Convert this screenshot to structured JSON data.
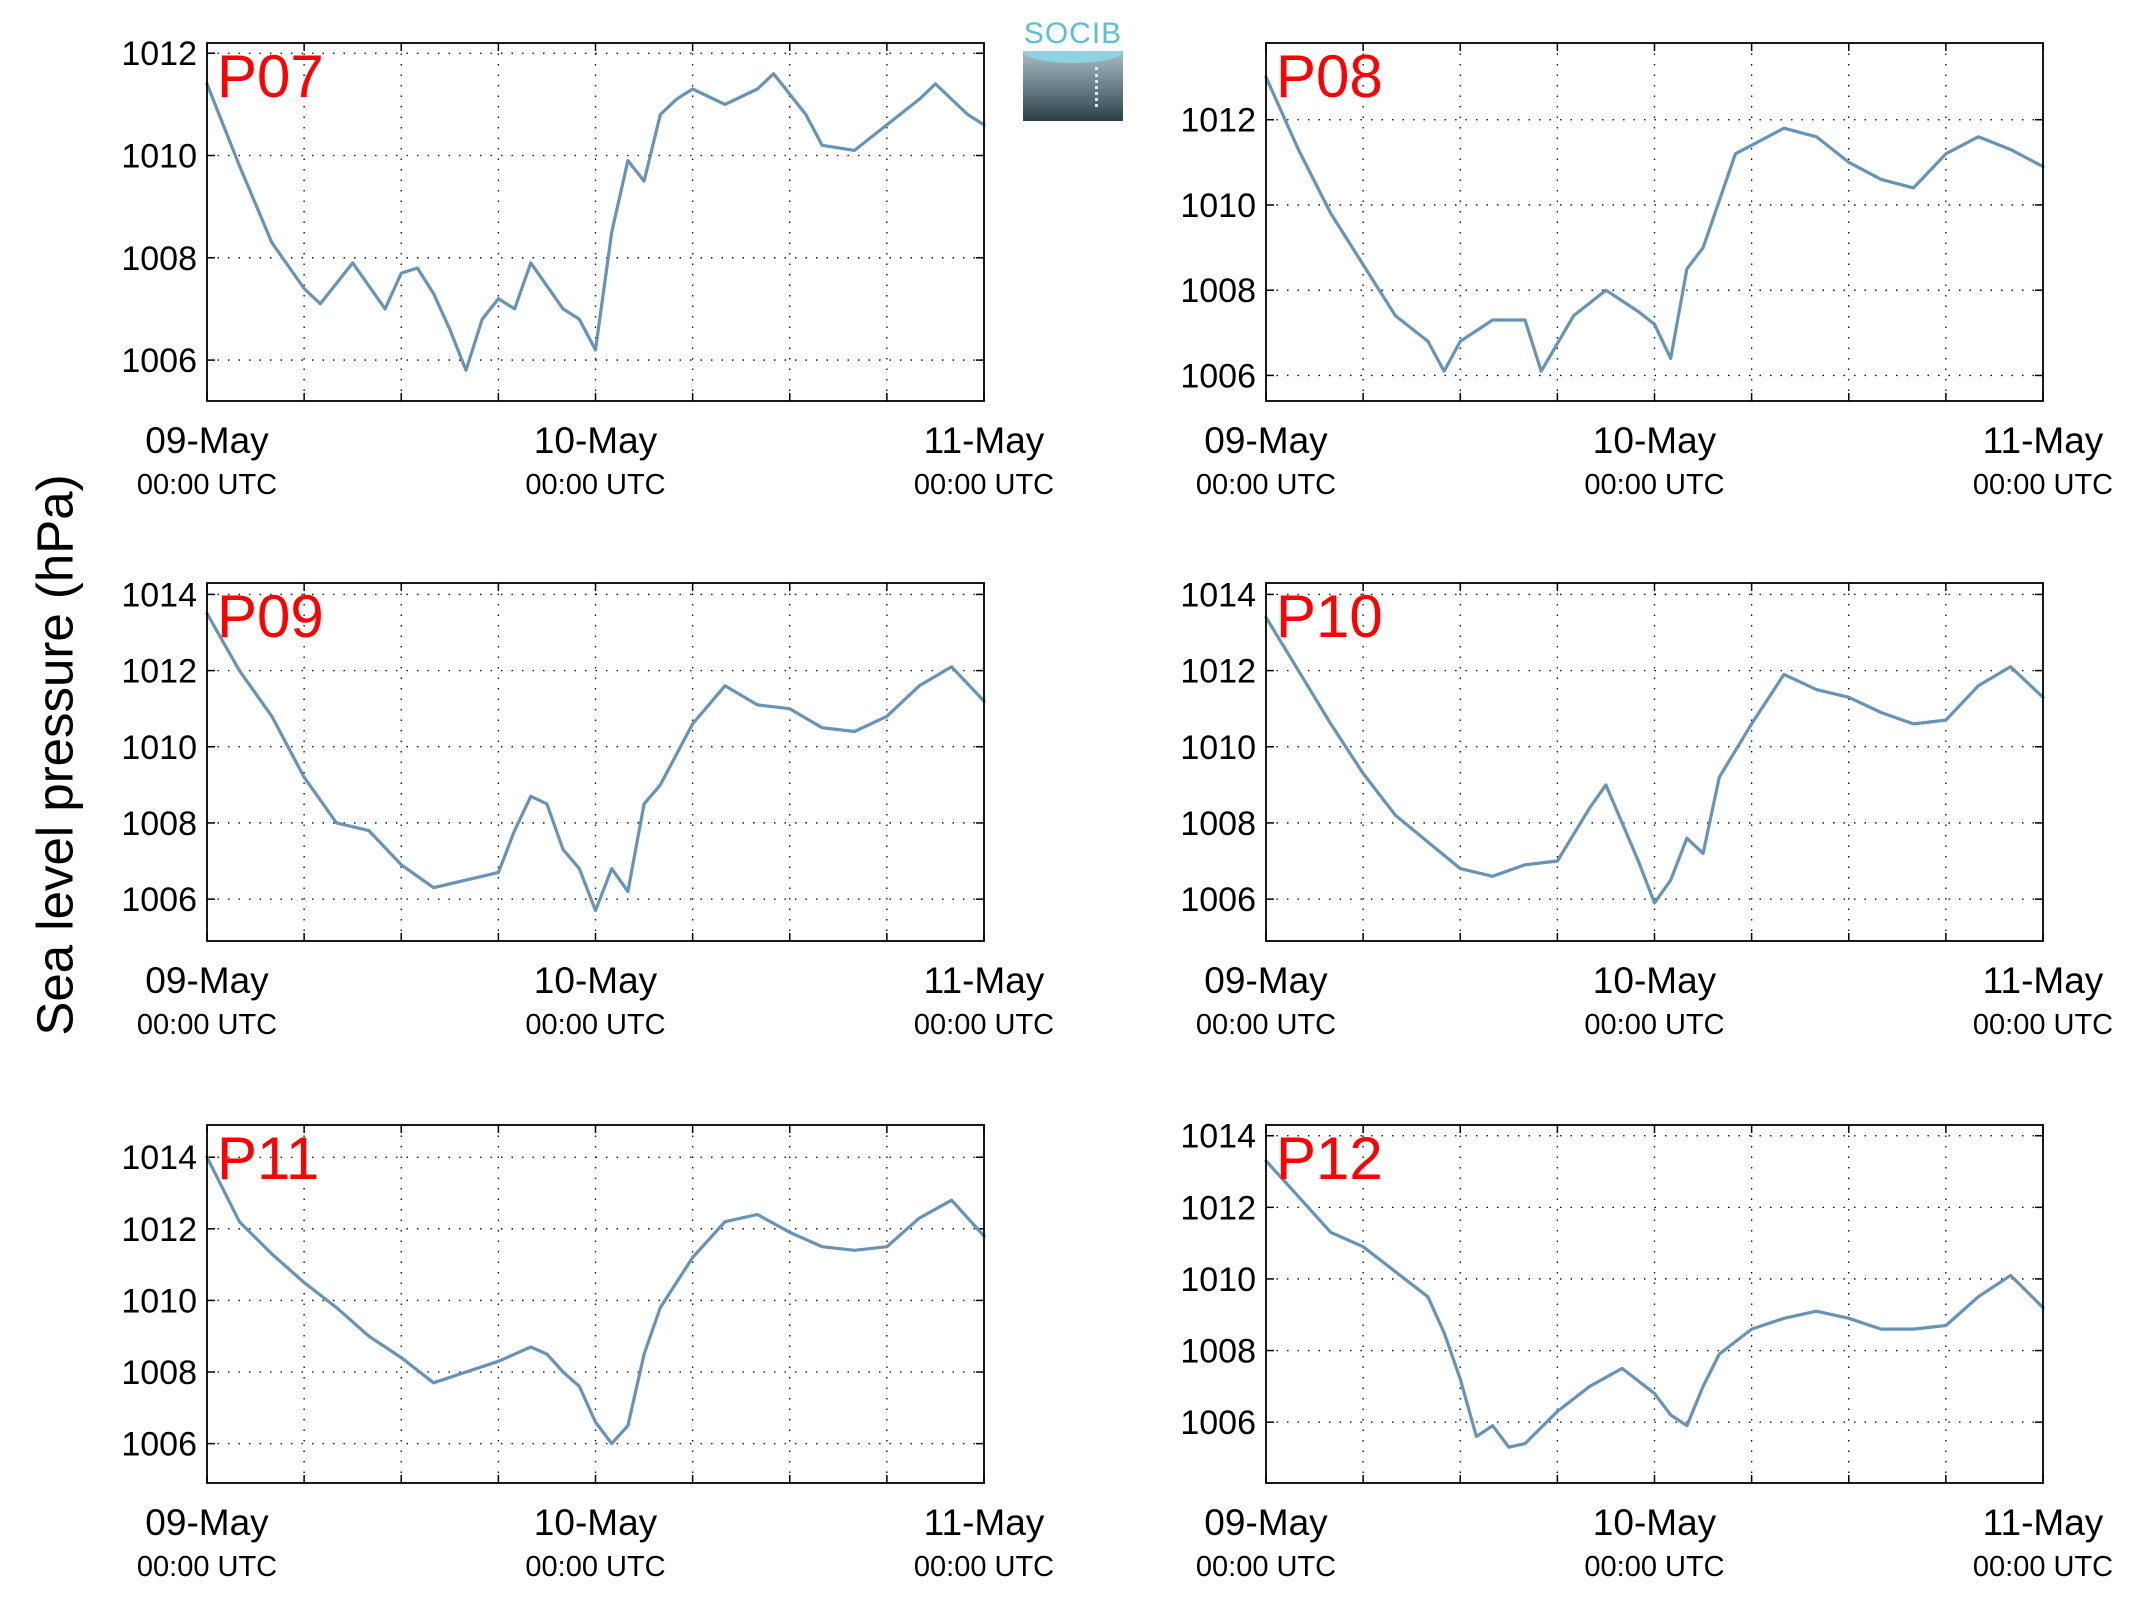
{
  "ylabel": "Sea level pressure (hPa)",
  "logo_text": "SOCIB",
  "line_color": "#6793b7",
  "label_color": "#ff0000",
  "chart_data": [
    {
      "type": "line",
      "label": "P07",
      "xticklabels": [
        {
          "date": "09-May",
          "time": "00:00 UTC"
        },
        {
          "date": "10-May",
          "time": "00:00 UTC"
        },
        {
          "date": "11-May",
          "time": "00:00 UTC"
        }
      ],
      "xlim": [
        "2013-05-09T00:00",
        "2013-05-11T00:00"
      ],
      "ylim": [
        1005.2,
        1012.2
      ],
      "yticks": [
        1006,
        1008,
        1010,
        1012
      ],
      "grid": true,
      "series": [
        {
          "x": [
            "2013-05-09T00:00",
            "2013-05-09T02:00",
            "2013-05-09T04:00",
            "2013-05-09T06:00",
            "2013-05-09T07:00",
            "2013-05-09T09:00",
            "2013-05-09T11:00",
            "2013-05-09T12:00",
            "2013-05-09T13:00",
            "2013-05-09T14:00",
            "2013-05-09T15:00",
            "2013-05-09T16:00",
            "2013-05-09T17:00",
            "2013-05-09T18:00",
            "2013-05-09T19:00",
            "2013-05-09T20:00",
            "2013-05-09T22:00",
            "2013-05-09T23:00",
            "2013-05-10T00:00",
            "2013-05-10T01:00",
            "2013-05-10T02:00",
            "2013-05-10T03:00",
            "2013-05-10T04:00",
            "2013-05-10T05:00",
            "2013-05-10T06:00",
            "2013-05-10T08:00",
            "2013-05-10T10:00",
            "2013-05-10T11:00",
            "2013-05-10T13:00",
            "2013-05-10T14:00",
            "2013-05-10T16:00",
            "2013-05-10T18:00",
            "2013-05-10T20:00",
            "2013-05-10T21:00",
            "2013-05-10T23:00",
            "2013-05-11T00:00"
          ],
          "y": [
            1011.4,
            1009.8,
            1008.3,
            1007.4,
            1007.1,
            1007.9,
            1007.0,
            1007.7,
            1007.8,
            1007.3,
            1006.6,
            1005.8,
            1006.8,
            1007.2,
            1007.0,
            1007.9,
            1007.0,
            1006.8,
            1006.2,
            1008.5,
            1009.9,
            1009.5,
            1010.8,
            1011.1,
            1011.3,
            1011.0,
            1011.3,
            1011.6,
            1010.8,
            1010.2,
            1010.1,
            1010.6,
            1011.1,
            1011.4,
            1010.8,
            1010.6
          ]
        }
      ]
    },
    {
      "type": "line",
      "label": "P08",
      "xticklabels": [
        {
          "date": "09-May",
          "time": "00:00 UTC"
        },
        {
          "date": "10-May",
          "time": "00:00 UTC"
        },
        {
          "date": "11-May",
          "time": "00:00 UTC"
        }
      ],
      "xlim": [
        "2013-05-09T00:00",
        "2013-05-11T00:00"
      ],
      "ylim": [
        1005.4,
        1013.8
      ],
      "yticks": [
        1006,
        1008,
        1010,
        1012
      ],
      "grid": true,
      "series": [
        {
          "x": [
            "2013-05-09T00:00",
            "2013-05-09T02:00",
            "2013-05-09T04:00",
            "2013-05-09T06:00",
            "2013-05-09T08:00",
            "2013-05-09T10:00",
            "2013-05-09T11:00",
            "2013-05-09T12:00",
            "2013-05-09T14:00",
            "2013-05-09T16:00",
            "2013-05-09T17:00",
            "2013-05-09T19:00",
            "2013-05-09T21:00",
            "2013-05-09T23:00",
            "2013-05-10T00:00",
            "2013-05-10T01:00",
            "2013-05-10T02:00",
            "2013-05-10T03:00",
            "2013-05-10T04:00",
            "2013-05-10T05:00",
            "2013-05-10T06:00",
            "2013-05-10T08:00",
            "2013-05-10T10:00",
            "2013-05-10T12:00",
            "2013-05-10T14:00",
            "2013-05-10T16:00",
            "2013-05-10T18:00",
            "2013-05-10T20:00",
            "2013-05-10T22:00",
            "2013-05-11T00:00"
          ],
          "y": [
            1013.0,
            1011.3,
            1009.8,
            1008.6,
            1007.4,
            1006.8,
            1006.1,
            1006.8,
            1007.3,
            1007.3,
            1006.1,
            1007.4,
            1008.0,
            1007.5,
            1007.2,
            1006.4,
            1008.5,
            1009.0,
            1010.1,
            1011.2,
            1011.4,
            1011.8,
            1011.6,
            1011.0,
            1010.6,
            1010.4,
            1011.2,
            1011.6,
            1011.3,
            1010.9
          ]
        }
      ]
    },
    {
      "type": "line",
      "label": "P09",
      "xticklabels": [
        {
          "date": "09-May",
          "time": "00:00 UTC"
        },
        {
          "date": "10-May",
          "time": "00:00 UTC"
        },
        {
          "date": "11-May",
          "time": "00:00 UTC"
        }
      ],
      "xlim": [
        "2013-05-09T00:00",
        "2013-05-11T00:00"
      ],
      "ylim": [
        1004.9,
        1014.3
      ],
      "yticks": [
        1006,
        1008,
        1010,
        1012,
        1014
      ],
      "grid": true,
      "series": [
        {
          "x": [
            "2013-05-09T00:00",
            "2013-05-09T02:00",
            "2013-05-09T04:00",
            "2013-05-09T06:00",
            "2013-05-09T08:00",
            "2013-05-09T10:00",
            "2013-05-09T12:00",
            "2013-05-09T14:00",
            "2013-05-09T16:00",
            "2013-05-09T18:00",
            "2013-05-09T19:00",
            "2013-05-09T20:00",
            "2013-05-09T21:00",
            "2013-05-09T22:00",
            "2013-05-09T23:00",
            "2013-05-10T00:00",
            "2013-05-10T01:00",
            "2013-05-10T02:00",
            "2013-05-10T03:00",
            "2013-05-10T04:00",
            "2013-05-10T06:00",
            "2013-05-10T08:00",
            "2013-05-10T10:00",
            "2013-05-10T12:00",
            "2013-05-10T14:00",
            "2013-05-10T16:00",
            "2013-05-10T18:00",
            "2013-05-10T20:00",
            "2013-05-10T22:00",
            "2013-05-11T00:00"
          ],
          "y": [
            1013.5,
            1012.0,
            1010.8,
            1009.2,
            1008.0,
            1007.8,
            1006.9,
            1006.3,
            1006.5,
            1006.7,
            1007.8,
            1008.7,
            1008.5,
            1007.3,
            1006.8,
            1005.7,
            1006.8,
            1006.2,
            1008.5,
            1009.0,
            1010.6,
            1011.6,
            1011.1,
            1011.0,
            1010.5,
            1010.4,
            1010.8,
            1011.6,
            1012.1,
            1011.2
          ]
        }
      ]
    },
    {
      "type": "line",
      "label": "P10",
      "xticklabels": [
        {
          "date": "09-May",
          "time": "00:00 UTC"
        },
        {
          "date": "10-May",
          "time": "00:00 UTC"
        },
        {
          "date": "11-May",
          "time": "00:00 UTC"
        }
      ],
      "xlim": [
        "2013-05-09T00:00",
        "2013-05-11T00:00"
      ],
      "ylim": [
        1004.9,
        1014.3
      ],
      "yticks": [
        1006,
        1008,
        1010,
        1012,
        1014
      ],
      "grid": true,
      "series": [
        {
          "x": [
            "2013-05-09T00:00",
            "2013-05-09T02:00",
            "2013-05-09T04:00",
            "2013-05-09T06:00",
            "2013-05-09T08:00",
            "2013-05-09T10:00",
            "2013-05-09T12:00",
            "2013-05-09T14:00",
            "2013-05-09T16:00",
            "2013-05-09T18:00",
            "2013-05-09T20:00",
            "2013-05-09T21:00",
            "2013-05-09T22:00",
            "2013-05-09T23:00",
            "2013-05-10T00:00",
            "2013-05-10T01:00",
            "2013-05-10T02:00",
            "2013-05-10T03:00",
            "2013-05-10T04:00",
            "2013-05-10T06:00",
            "2013-05-10T08:00",
            "2013-05-10T10:00",
            "2013-05-10T12:00",
            "2013-05-10T14:00",
            "2013-05-10T16:00",
            "2013-05-10T18:00",
            "2013-05-10T20:00",
            "2013-05-10T22:00",
            "2013-05-11T00:00"
          ],
          "y": [
            1013.4,
            1012.0,
            1010.6,
            1009.3,
            1008.2,
            1007.5,
            1006.8,
            1006.6,
            1006.9,
            1007.0,
            1008.4,
            1009.0,
            1008.0,
            1007.0,
            1005.9,
            1006.5,
            1007.6,
            1007.2,
            1009.2,
            1010.6,
            1011.9,
            1011.5,
            1011.3,
            1010.9,
            1010.6,
            1010.7,
            1011.6,
            1012.1,
            1011.3
          ]
        }
      ]
    },
    {
      "type": "line",
      "label": "P11",
      "xticklabels": [
        {
          "date": "09-May",
          "time": "00:00 UTC"
        },
        {
          "date": "10-May",
          "time": "00:00 UTC"
        },
        {
          "date": "11-May",
          "time": "00:00 UTC"
        }
      ],
      "xlim": [
        "2013-05-09T00:00",
        "2013-05-11T00:00"
      ],
      "ylim": [
        1004.9,
        1014.9
      ],
      "yticks": [
        1006,
        1008,
        1010,
        1012,
        1014
      ],
      "grid": true,
      "series": [
        {
          "x": [
            "2013-05-09T00:00",
            "2013-05-09T02:00",
            "2013-05-09T04:00",
            "2013-05-09T06:00",
            "2013-05-09T08:00",
            "2013-05-09T10:00",
            "2013-05-09T12:00",
            "2013-05-09T14:00",
            "2013-05-09T16:00",
            "2013-05-09T18:00",
            "2013-05-09T20:00",
            "2013-05-09T21:00",
            "2013-05-09T22:00",
            "2013-05-09T23:00",
            "2013-05-10T00:00",
            "2013-05-10T01:00",
            "2013-05-10T02:00",
            "2013-05-10T03:00",
            "2013-05-10T04:00",
            "2013-05-10T06:00",
            "2013-05-10T08:00",
            "2013-05-10T10:00",
            "2013-05-10T12:00",
            "2013-05-10T14:00",
            "2013-05-10T16:00",
            "2013-05-10T18:00",
            "2013-05-10T20:00",
            "2013-05-10T22:00",
            "2013-05-11T00:00"
          ],
          "y": [
            1014.0,
            1012.2,
            1011.3,
            1010.5,
            1009.8,
            1009.0,
            1008.4,
            1007.7,
            1008.0,
            1008.3,
            1008.7,
            1008.5,
            1008.0,
            1007.6,
            1006.6,
            1006.0,
            1006.5,
            1008.5,
            1009.8,
            1011.2,
            1012.2,
            1012.4,
            1011.9,
            1011.5,
            1011.4,
            1011.5,
            1012.3,
            1012.8,
            1011.8
          ]
        }
      ]
    },
    {
      "type": "line",
      "label": "P12",
      "xticklabels": [
        {
          "date": "09-May",
          "time": "00:00 UTC"
        },
        {
          "date": "10-May",
          "time": "00:00 UTC"
        },
        {
          "date": "11-May",
          "time": "00:00 UTC"
        }
      ],
      "xlim": [
        "2013-05-09T00:00",
        "2013-05-11T00:00"
      ],
      "ylim": [
        1004.3,
        1014.3
      ],
      "yticks": [
        1006,
        1008,
        1010,
        1012,
        1014
      ],
      "grid": true,
      "series": [
        {
          "x": [
            "2013-05-09T00:00",
            "2013-05-09T02:00",
            "2013-05-09T04:00",
            "2013-05-09T06:00",
            "2013-05-09T08:00",
            "2013-05-09T10:00",
            "2013-05-09T11:00",
            "2013-05-09T12:00",
            "2013-05-09T13:00",
            "2013-05-09T14:00",
            "2013-05-09T15:00",
            "2013-05-09T16:00",
            "2013-05-09T18:00",
            "2013-05-09T20:00",
            "2013-05-09T22:00",
            "2013-05-10T00:00",
            "2013-05-10T01:00",
            "2013-05-10T02:00",
            "2013-05-10T03:00",
            "2013-05-10T04:00",
            "2013-05-10T06:00",
            "2013-05-10T08:00",
            "2013-05-10T10:00",
            "2013-05-10T12:00",
            "2013-05-10T14:00",
            "2013-05-10T16:00",
            "2013-05-10T18:00",
            "2013-05-10T20:00",
            "2013-05-10T22:00",
            "2013-05-11T00:00"
          ],
          "y": [
            1013.3,
            1012.3,
            1011.3,
            1010.9,
            1010.2,
            1009.5,
            1008.5,
            1007.2,
            1005.6,
            1005.9,
            1005.3,
            1005.4,
            1006.3,
            1007.0,
            1007.5,
            1006.8,
            1006.2,
            1005.9,
            1007.0,
            1007.9,
            1008.6,
            1008.9,
            1009.1,
            1008.9,
            1008.6,
            1008.6,
            1008.7,
            1009.5,
            1010.1,
            1009.2
          ]
        }
      ]
    }
  ]
}
